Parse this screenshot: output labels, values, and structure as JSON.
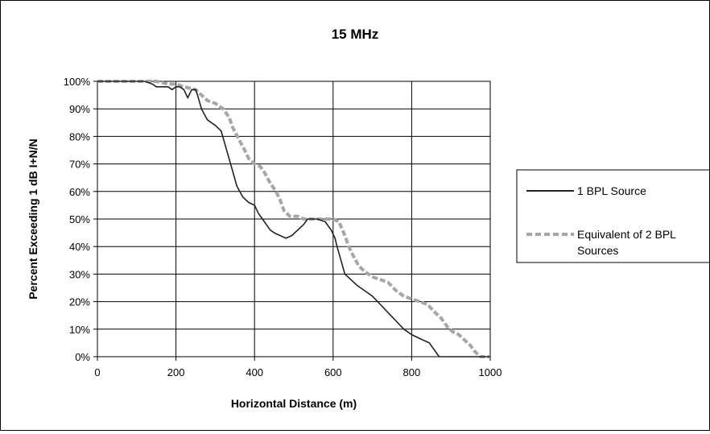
{
  "chart_data": {
    "type": "line",
    "title": "15 MHz",
    "xlabel": "Horizontal Distance (m)",
    "ylabel": "Percent Exceeding 1 dB I+N/N",
    "xlim": [
      0,
      1000
    ],
    "ylim": [
      0,
      100
    ],
    "x_ticks": [
      "0",
      "200",
      "400",
      "600",
      "800",
      "1000"
    ],
    "y_ticks": [
      "0%",
      "10%",
      "20%",
      "30%",
      "40%",
      "50%",
      "60%",
      "70%",
      "80%",
      "90%",
      "100%"
    ],
    "grid": true,
    "legend_position": "right",
    "series": [
      {
        "name": "1 BPL Source",
        "color": "#222222",
        "style": "solid",
        "points": [
          [
            0,
            100
          ],
          [
            120,
            100
          ],
          [
            140,
            99
          ],
          [
            150,
            98
          ],
          [
            160,
            98
          ],
          [
            170,
            98
          ],
          [
            180,
            98
          ],
          [
            190,
            97
          ],
          [
            200,
            98
          ],
          [
            210,
            98
          ],
          [
            220,
            97
          ],
          [
            230,
            94
          ],
          [
            240,
            97
          ],
          [
            250,
            97
          ],
          [
            255,
            95
          ],
          [
            265,
            90
          ],
          [
            280,
            86
          ],
          [
            300,
            84
          ],
          [
            315,
            82
          ],
          [
            325,
            77
          ],
          [
            335,
            72
          ],
          [
            345,
            67
          ],
          [
            355,
            62
          ],
          [
            370,
            58
          ],
          [
            385,
            56
          ],
          [
            400,
            55
          ],
          [
            410,
            52
          ],
          [
            420,
            50
          ],
          [
            430,
            48
          ],
          [
            440,
            46
          ],
          [
            450,
            45
          ],
          [
            465,
            44
          ],
          [
            480,
            43
          ],
          [
            495,
            44
          ],
          [
            510,
            46
          ],
          [
            525,
            48
          ],
          [
            535,
            50
          ],
          [
            545,
            50
          ],
          [
            560,
            50
          ],
          [
            580,
            49
          ],
          [
            595,
            46
          ],
          [
            605,
            43
          ],
          [
            610,
            40
          ],
          [
            620,
            35
          ],
          [
            630,
            30
          ],
          [
            645,
            28
          ],
          [
            660,
            26
          ],
          [
            680,
            24
          ],
          [
            700,
            22
          ],
          [
            720,
            19
          ],
          [
            740,
            16
          ],
          [
            760,
            13
          ],
          [
            780,
            10
          ],
          [
            800,
            8
          ],
          [
            815,
            7
          ],
          [
            830,
            6
          ],
          [
            845,
            5
          ],
          [
            855,
            3
          ],
          [
            865,
            1
          ],
          [
            870,
            0
          ],
          [
            1000,
            0
          ]
        ]
      },
      {
        "name": "Equivalent of 2 BPL Sources",
        "color": "#a6a6a6",
        "style": "dashed",
        "points": [
          [
            0,
            100
          ],
          [
            150,
            100
          ],
          [
            180,
            99
          ],
          [
            200,
            99
          ],
          [
            220,
            98
          ],
          [
            250,
            97
          ],
          [
            265,
            95
          ],
          [
            280,
            93
          ],
          [
            300,
            92
          ],
          [
            320,
            90
          ],
          [
            335,
            87
          ],
          [
            345,
            83
          ],
          [
            360,
            79
          ],
          [
            375,
            75
          ],
          [
            385,
            72
          ],
          [
            400,
            70
          ],
          [
            415,
            69
          ],
          [
            425,
            67
          ],
          [
            440,
            63
          ],
          [
            455,
            60
          ],
          [
            465,
            57
          ],
          [
            475,
            53
          ],
          [
            490,
            51
          ],
          [
            510,
            51
          ],
          [
            525,
            50
          ],
          [
            560,
            50
          ],
          [
            600,
            50
          ],
          [
            615,
            49
          ],
          [
            630,
            44
          ],
          [
            640,
            40
          ],
          [
            650,
            37
          ],
          [
            665,
            33
          ],
          [
            680,
            31
          ],
          [
            700,
            29
          ],
          [
            720,
            28
          ],
          [
            740,
            27
          ],
          [
            760,
            24
          ],
          [
            780,
            22
          ],
          [
            800,
            21
          ],
          [
            820,
            20
          ],
          [
            840,
            19
          ],
          [
            860,
            16
          ],
          [
            875,
            14
          ],
          [
            890,
            11
          ],
          [
            905,
            9
          ],
          [
            920,
            8
          ],
          [
            935,
            6
          ],
          [
            950,
            4
          ],
          [
            960,
            2
          ],
          [
            975,
            0
          ],
          [
            1000,
            0
          ]
        ]
      }
    ]
  }
}
